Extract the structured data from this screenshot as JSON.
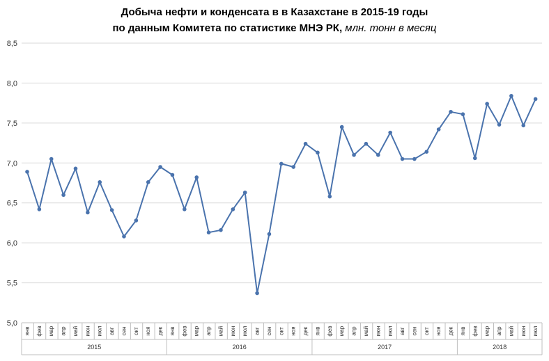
{
  "title": {
    "line1": "Добыча  нефти и конденсата  в в Казахстане  в 2015-19 годы",
    "line2": "по данным  Комитета по статистике МНЭ РК,",
    "unit": " млн. тонн в месяц"
  },
  "chart_data": {
    "type": "line",
    "months": [
      "янв",
      "фев",
      "мар",
      "апр",
      "май",
      "июн",
      "июл",
      "авг",
      "сен",
      "окт",
      "ноя",
      "дек",
      "янв",
      "фев",
      "мар",
      "апр",
      "май",
      "июн",
      "июл",
      "авг",
      "сен",
      "окт",
      "ноя",
      "дек",
      "янв",
      "фев",
      "мар",
      "апр",
      "май",
      "июн",
      "июл",
      "авг",
      "сен",
      "окт",
      "ноя",
      "дек",
      "янв",
      "фев",
      "мар",
      "апр",
      "май",
      "июн",
      "июл"
    ],
    "years": [
      {
        "label": "2015",
        "months": 12
      },
      {
        "label": "2016",
        "months": 12
      },
      {
        "label": "2017",
        "months": 12
      },
      {
        "label": "2018",
        "months": 7
      }
    ],
    "values": [
      6.89,
      6.42,
      7.05,
      6.6,
      6.93,
      6.38,
      6.76,
      6.41,
      6.08,
      6.28,
      6.76,
      6.95,
      6.85,
      6.42,
      6.82,
      6.13,
      6.16,
      6.42,
      6.63,
      5.37,
      6.11,
      6.99,
      6.95,
      7.24,
      7.13,
      6.58,
      7.45,
      7.1,
      7.24,
      7.1,
      7.38,
      7.05,
      7.05,
      7.14,
      7.42,
      7.64,
      7.61,
      7.06,
      7.74,
      7.48,
      7.84,
      7.47,
      7.8
    ],
    "ylim": [
      5.0,
      8.5
    ],
    "yticks": [
      "5,0",
      "5,5",
      "6,0",
      "6,5",
      "7,0",
      "7,5",
      "8,0",
      "8,5"
    ],
    "ytick_values": [
      5.0,
      5.5,
      6.0,
      6.5,
      7.0,
      7.5,
      8.0,
      8.5
    ],
    "grid": true,
    "line_color": "#4a73ad",
    "grid_color": "#d9d9d9"
  }
}
